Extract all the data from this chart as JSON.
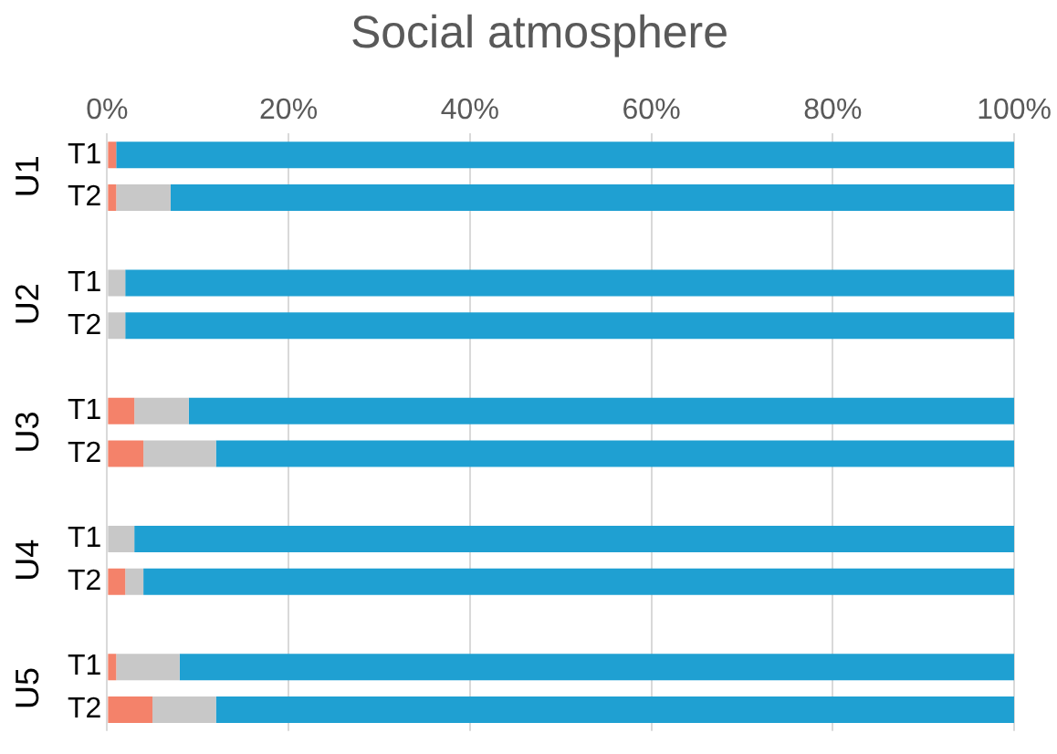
{
  "chart_data": {
    "type": "bar",
    "orientation": "horizontal",
    "stacked": true,
    "title": "Social atmosphere",
    "categories": [
      "T1",
      "T2",
      null,
      "T1",
      "T2",
      null,
      "T1",
      "T2",
      null,
      "T1",
      "T2",
      null,
      "T1",
      "T2"
    ],
    "series": [
      {
        "color": "#f4826a",
        "values": [
          1,
          1,
          null,
          0,
          0,
          null,
          3,
          4,
          null,
          0,
          2,
          null,
          1,
          5
        ]
      },
      {
        "color": "#c8c8c8",
        "values": [
          0,
          6,
          null,
          2,
          2,
          null,
          6,
          8,
          null,
          3,
          2,
          null,
          7,
          7
        ]
      },
      {
        "color": "#1fa0d2",
        "values": [
          99,
          93,
          null,
          98,
          98,
          null,
          91,
          88,
          null,
          97,
          96,
          null,
          92,
          88
        ]
      }
    ],
    "xlim": [
      0,
      100
    ],
    "xticks": [
      {
        "value": 0,
        "label": "0%"
      },
      {
        "value": 20,
        "label": "20%"
      },
      {
        "value": 40,
        "label": "40%"
      },
      {
        "value": 60,
        "label": "60%"
      },
      {
        "value": 80,
        "label": "80%"
      },
      {
        "value": 100,
        "label": "100%"
      }
    ],
    "annotations": [
      "U1",
      "U2",
      "U3",
      "U4",
      "U5"
    ],
    "grid": "x",
    "legend": false
  }
}
